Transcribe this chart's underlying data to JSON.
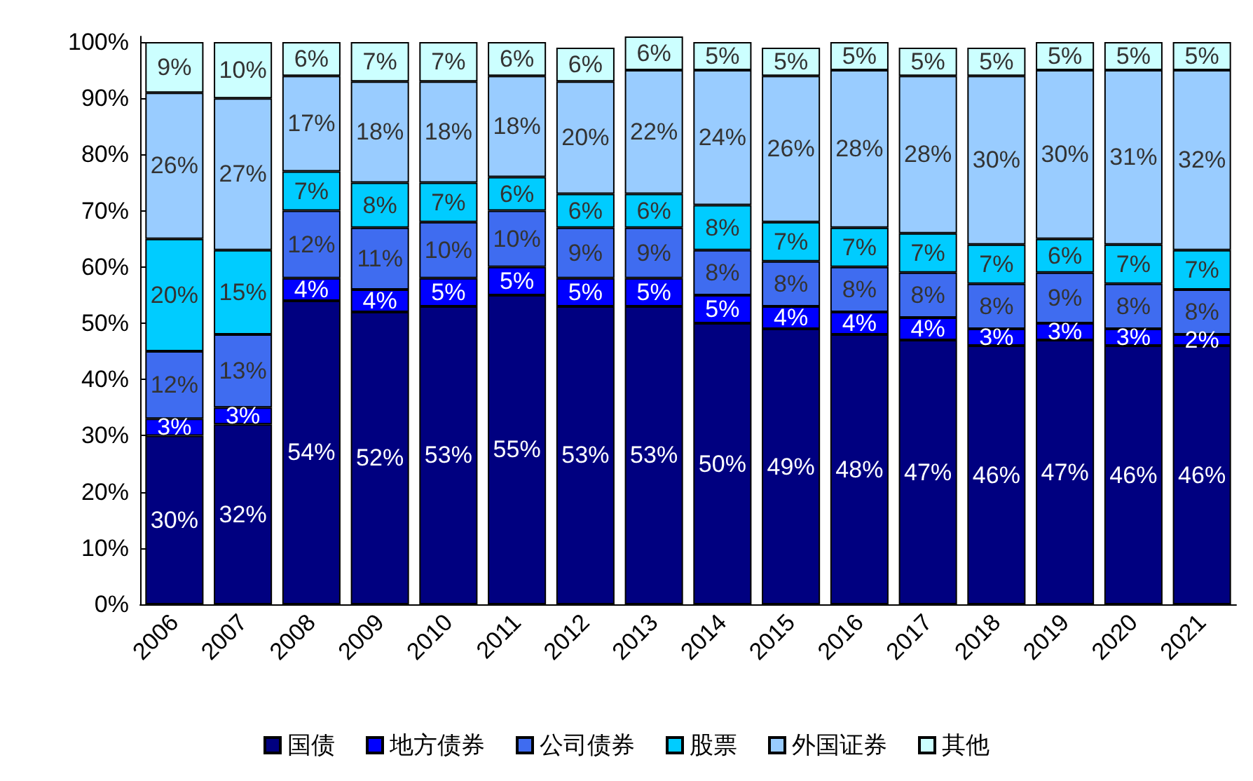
{
  "chart_data": {
    "type": "bar",
    "stacked": true,
    "categories": [
      "2006",
      "2007",
      "2008",
      "2009",
      "2010",
      "2011",
      "2012",
      "2013",
      "2014",
      "2015",
      "2016",
      "2017",
      "2018",
      "2019",
      "2020",
      "2021"
    ],
    "ylim": [
      0,
      101
    ],
    "yticks": [
      {
        "value": 0,
        "label": "0%"
      },
      {
        "value": 10,
        "label": "10%"
      },
      {
        "value": 20,
        "label": "20%"
      },
      {
        "value": 30,
        "label": "30%"
      },
      {
        "value": 40,
        "label": "40%"
      },
      {
        "value": 50,
        "label": "50%"
      },
      {
        "value": 60,
        "label": "60%"
      },
      {
        "value": 70,
        "label": "70%"
      },
      {
        "value": 80,
        "label": "80%"
      },
      {
        "value": 90,
        "label": "90%"
      },
      {
        "value": 100,
        "label": "100%"
      }
    ],
    "grid": false,
    "legend": "bottom",
    "series": [
      {
        "name": "国债",
        "color": "#000080",
        "values": [
          30,
          32,
          54,
          52,
          53,
          55,
          53,
          53,
          50,
          49,
          48,
          47,
          46,
          47,
          46,
          46
        ],
        "value_labels": [
          "30%",
          "32%",
          "54%",
          "52%",
          "53%",
          "55%",
          "53%",
          "53%",
          "50%",
          "49%",
          "48%",
          "47%",
          "46%",
          "47%",
          "46%",
          "46%"
        ]
      },
      {
        "name": "地方债券",
        "color": "#0000ff",
        "values": [
          3,
          3,
          4,
          4,
          5,
          5,
          5,
          5,
          5,
          4,
          4,
          4,
          3,
          3,
          3,
          2
        ],
        "value_labels": [
          "3%",
          "3%",
          "4%",
          "4%",
          "5%",
          "5%",
          "5%",
          "5%",
          "5%",
          "4%",
          "4%",
          "4%",
          "3%",
          "3%",
          "3%",
          "2%"
        ]
      },
      {
        "name": "公司债券",
        "color": "#3f6cf0",
        "values": [
          12,
          13,
          12,
          11,
          10,
          10,
          9,
          9,
          8,
          8,
          8,
          8,
          8,
          9,
          8,
          8
        ],
        "value_labels": [
          "12%",
          "13%",
          "12%",
          "11%",
          "10%",
          "10%",
          "9%",
          "9%",
          "8%",
          "8%",
          "8%",
          "8%",
          "8%",
          "9%",
          "8%",
          "8%"
        ]
      },
      {
        "name": "股票",
        "color": "#00ccff",
        "values": [
          20,
          15,
          7,
          8,
          7,
          6,
          6,
          6,
          8,
          7,
          7,
          7,
          7,
          6,
          7,
          7
        ],
        "value_labels": [
          "20%",
          "15%",
          "7%",
          "8%",
          "7%",
          "6%",
          "6%",
          "6%",
          "8%",
          "7%",
          "7%",
          "7%",
          "7%",
          "6%",
          "7%",
          "7%"
        ]
      },
      {
        "name": "外国证券",
        "color": "#99ccff",
        "values": [
          26,
          27,
          17,
          18,
          18,
          18,
          20,
          22,
          24,
          26,
          28,
          28,
          30,
          30,
          31,
          32
        ],
        "value_labels": [
          "26%",
          "27%",
          "17%",
          "18%",
          "18%",
          "18%",
          "20%",
          "22%",
          "24%",
          "26%",
          "28%",
          "28%",
          "30%",
          "30%",
          "31%",
          "32%"
        ]
      },
      {
        "name": "其他",
        "color": "#ccffff",
        "values": [
          9,
          10,
          6,
          7,
          7,
          6,
          6,
          6,
          5,
          5,
          5,
          5,
          5,
          5,
          5,
          5
        ],
        "value_labels": [
          "9%",
          "10%",
          "6%",
          "7%",
          "7%",
          "6%",
          "6%",
          "6%",
          "5%",
          "5%",
          "5%",
          "5%",
          "5%",
          "5%",
          "5%",
          "5%"
        ]
      }
    ]
  }
}
